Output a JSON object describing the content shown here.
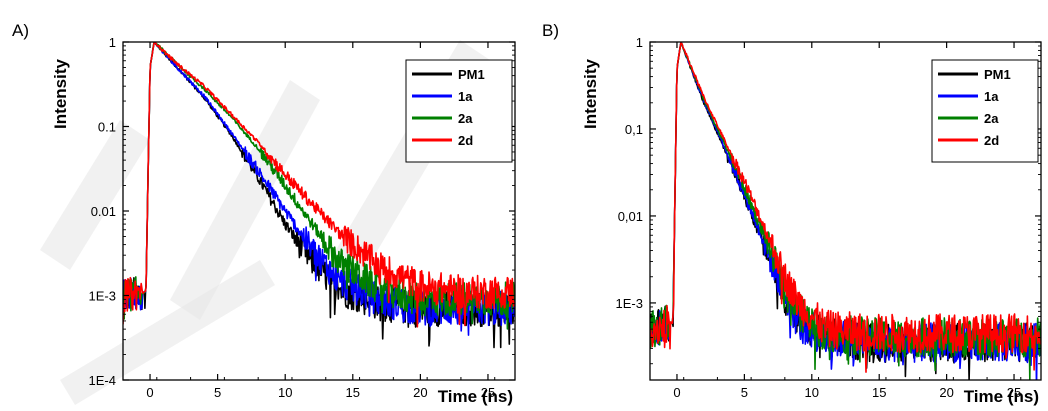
{
  "chart_data": [
    {
      "panel_label": "A)",
      "type": "line",
      "xlabel": "Time (ns)",
      "ylabel": "Intensity",
      "yscale": "log",
      "xlim": [
        -2,
        27
      ],
      "ylim": [
        0.0001,
        1
      ],
      "xticks": [
        0,
        5,
        10,
        15,
        20,
        25
      ],
      "xtick_labels": [
        "0",
        "5",
        "10",
        "15",
        "20",
        "25"
      ],
      "yticks": [
        1,
        0.1,
        0.01,
        0.001,
        0.0001
      ],
      "ytick_labels": [
        "1",
        "0.1",
        "0.01",
        "1E-3",
        "1E-4"
      ],
      "legend_position": "top-right",
      "series": [
        {
          "name": "PM1",
          "color": "#000000",
          "x": [
            -2,
            -0.3,
            0,
            0.3,
            2,
            4,
            6,
            8,
            10,
            12,
            14,
            17,
            20,
            23,
            27
          ],
          "y": [
            0.001,
            0.0011,
            0.5,
            1,
            0.5,
            0.22,
            0.08,
            0.025,
            0.007,
            0.0025,
            0.0012,
            0.0008,
            0.0007,
            0.0007,
            0.0007
          ]
        },
        {
          "name": "1a",
          "color": "#0000ff",
          "x": [
            -2,
            -0.3,
            0,
            0.3,
            2,
            4,
            6,
            8,
            10,
            12,
            14,
            17,
            20,
            23,
            27
          ],
          "y": [
            0.001,
            0.0011,
            0.5,
            1,
            0.5,
            0.23,
            0.085,
            0.03,
            0.01,
            0.0035,
            0.0015,
            0.0009,
            0.0007,
            0.0007,
            0.0007
          ]
        },
        {
          "name": "2a",
          "color": "#008000",
          "x": [
            -2,
            -0.3,
            0,
            0.3,
            2,
            4,
            6,
            8,
            10,
            12,
            14,
            17,
            20,
            23,
            27
          ],
          "y": [
            0.001,
            0.0011,
            0.5,
            1,
            0.55,
            0.28,
            0.13,
            0.055,
            0.02,
            0.007,
            0.0025,
            0.0012,
            0.0009,
            0.0009,
            0.0009
          ]
        },
        {
          "name": "2d",
          "color": "#ff0000",
          "x": [
            -2,
            -0.3,
            0,
            0.3,
            2,
            4,
            6,
            8,
            10,
            12,
            14,
            17,
            20,
            23,
            27
          ],
          "y": [
            0.001,
            0.0011,
            0.5,
            1,
            0.55,
            0.3,
            0.14,
            0.065,
            0.027,
            0.012,
            0.0055,
            0.0022,
            0.0013,
            0.0011,
            0.0011
          ]
        }
      ]
    },
    {
      "panel_label": "B)",
      "type": "line",
      "xlabel": "Time (ns)",
      "ylabel": "Intensity",
      "yscale": "log",
      "xlim": [
        -2,
        27
      ],
      "ylim": [
        0.00013,
        1
      ],
      "xticks": [
        0,
        5,
        10,
        15,
        20,
        25
      ],
      "xtick_labels": [
        "0",
        "5",
        "10",
        "15",
        "20",
        "25"
      ],
      "yticks": [
        1,
        0.1,
        0.01,
        0.001
      ],
      "ytick_labels": [
        "1",
        "0,1",
        "0,01",
        "1E-3"
      ],
      "legend_position": "top-right",
      "series": [
        {
          "name": "PM1",
          "color": "#000000",
          "x": [
            -2,
            -0.3,
            0,
            0.3,
            2,
            3,
            4,
            5,
            6,
            7,
            8,
            9,
            11,
            15,
            20,
            27
          ],
          "y": [
            0.0005,
            0.0006,
            0.5,
            1,
            0.2,
            0.09,
            0.04,
            0.017,
            0.007,
            0.0028,
            0.0012,
            0.0006,
            0.0004,
            0.00035,
            0.00035,
            0.00035
          ]
        },
        {
          "name": "1a",
          "color": "#0000ff",
          "x": [
            -2,
            -0.3,
            0,
            0.3,
            2,
            3,
            4,
            5,
            6,
            7,
            8,
            9,
            11,
            15,
            20,
            27
          ],
          "y": [
            0.0005,
            0.0006,
            0.5,
            1,
            0.21,
            0.095,
            0.042,
            0.018,
            0.0075,
            0.003,
            0.0013,
            0.0006,
            0.0004,
            0.00035,
            0.00035,
            0.00035
          ]
        },
        {
          "name": "2a",
          "color": "#008000",
          "x": [
            -2,
            -0.3,
            0,
            0.3,
            2,
            3,
            4,
            5,
            6,
            7,
            8,
            9,
            11,
            15,
            20,
            27
          ],
          "y": [
            0.0005,
            0.0006,
            0.5,
            1,
            0.22,
            0.1,
            0.047,
            0.021,
            0.009,
            0.0038,
            0.0016,
            0.0008,
            0.00045,
            0.0004,
            0.0004,
            0.0004
          ]
        },
        {
          "name": "2d",
          "color": "#ff0000",
          "x": [
            -2,
            -0.3,
            0,
            0.3,
            2,
            3,
            4,
            5,
            6,
            7,
            8,
            9,
            11,
            15,
            20,
            27
          ],
          "y": [
            0.0005,
            0.0006,
            0.5,
            1,
            0.23,
            0.11,
            0.052,
            0.025,
            0.011,
            0.0048,
            0.002,
            0.001,
            0.0005,
            0.00045,
            0.00045,
            0.00045
          ]
        }
      ]
    }
  ]
}
